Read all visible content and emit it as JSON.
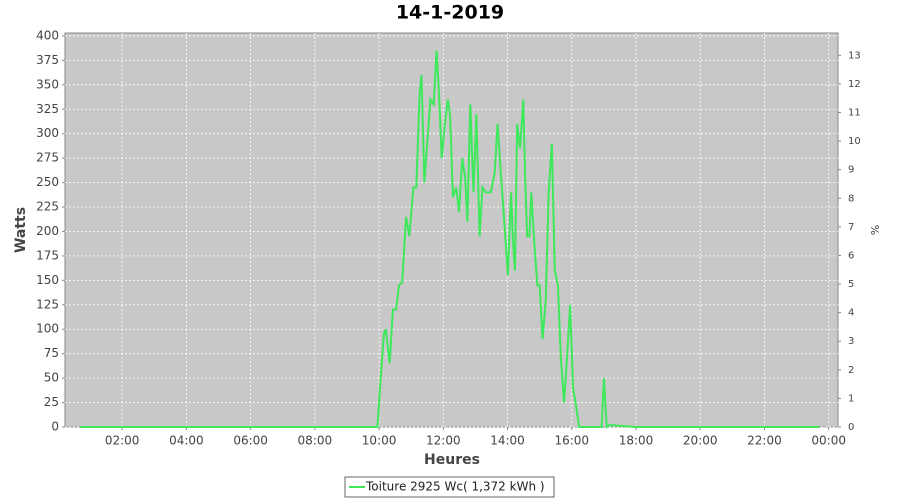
{
  "chart_data": {
    "type": "line",
    "title": "14-1-2019",
    "x_label": "Heures",
    "y_label": "Watts",
    "y2_label": "%",
    "x": [
      0.7,
      2,
      4,
      6,
      8,
      9.8,
      9.95,
      10.05,
      10.15,
      10.21,
      10.33,
      10.43,
      10.53,
      10.62,
      10.72,
      10.84,
      10.94,
      11.07,
      11.16,
      11.26,
      11.32,
      11.41,
      11.51,
      11.6,
      11.7,
      11.79,
      11.86,
      11.95,
      12.05,
      12.14,
      12.21,
      12.3,
      12.4,
      12.49,
      12.59,
      12.68,
      12.75,
      12.84,
      12.94,
      13.03,
      13.13,
      13.22,
      13.32,
      13.48,
      13.6,
      13.69,
      13.79,
      13.92,
      14.01,
      14.11,
      14.17,
      14.23,
      14.3,
      14.39,
      14.49,
      14.55,
      14.61,
      14.68,
      14.74,
      14.84,
      14.93,
      15.0,
      15.09,
      15.19,
      15.28,
      15.38,
      15.47,
      15.57,
      15.66,
      15.76,
      15.85,
      15.95,
      16.04,
      16.14,
      16.23,
      16.49,
      16.93,
      17.0,
      17.09,
      17.18,
      18,
      20,
      22,
      23.7
    ],
    "series": [
      {
        "name": "Toiture 2925 Wc( 1,372 kWh )",
        "color": "#3de85a",
        "values": [
          0,
          0,
          0,
          0,
          0,
          0,
          0,
          50,
          95,
          100,
          65,
          120,
          120,
          145,
          148,
          215,
          195,
          245,
          245,
          340,
          360,
          250,
          295,
          335,
          330,
          385,
          345,
          275,
          310,
          335,
          320,
          235,
          245,
          220,
          275,
          255,
          210,
          330,
          240,
          320,
          195,
          245,
          240,
          240,
          260,
          310,
          260,
          200,
          155,
          240,
          190,
          160,
          310,
          285,
          335,
          255,
          195,
          195,
          240,
          185,
          145,
          145,
          90,
          130,
          240,
          290,
          160,
          145,
          70,
          25,
          70,
          125,
          40,
          20,
          0,
          0,
          0,
          50,
          0,
          2,
          0,
          0,
          0,
          0
        ]
      }
    ],
    "xlim": [
      0.22,
      24.29
    ],
    "xticks": [
      {
        "value": 2,
        "label": "02:00"
      },
      {
        "value": 4,
        "label": "04:00"
      },
      {
        "value": 6,
        "label": "06:00"
      },
      {
        "value": 8,
        "label": "08:00"
      },
      {
        "value": 10,
        "label": "10:00"
      },
      {
        "value": 12,
        "label": "12:00"
      },
      {
        "value": 14,
        "label": "14:00"
      },
      {
        "value": 16,
        "label": "16:00"
      },
      {
        "value": 18,
        "label": "18:00"
      },
      {
        "value": 20,
        "label": "20:00"
      },
      {
        "value": 22,
        "label": "22:00"
      },
      {
        "value": 24,
        "label": "00:00"
      }
    ],
    "ylim": [
      0,
      403
    ],
    "yticks": [
      0,
      25,
      50,
      75,
      100,
      125,
      150,
      175,
      200,
      225,
      250,
      275,
      300,
      325,
      350,
      375,
      400
    ],
    "y2lim": [
      0,
      13.78
    ],
    "y2ticks": [
      0,
      1,
      2,
      3,
      4,
      5,
      6,
      7,
      8,
      9,
      10,
      11,
      12,
      13
    ],
    "grid": true,
    "plot_background": "#c8c8c8",
    "legend": "bottom"
  }
}
